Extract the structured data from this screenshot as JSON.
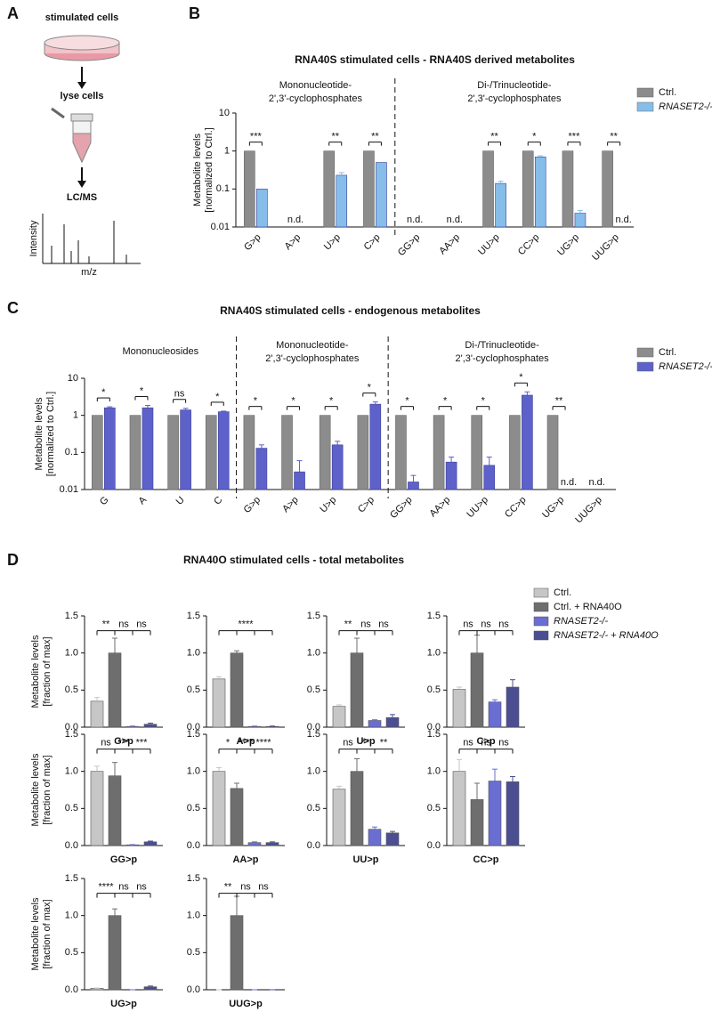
{
  "panels": [
    "A",
    "B",
    "C",
    "D"
  ],
  "diagram": {
    "steps": [
      "stimulated cells",
      "lyse cells",
      "LC/MS"
    ],
    "ylabel": "Intensity",
    "xlabel": "m/z"
  },
  "chart_data": [
    {
      "type": "bar",
      "title": "RNA40S stimulated cells - RNA40S derived metabolites",
      "groups": [
        [
          "Mononucleotide-",
          "2',3'-cyclophosphates"
        ],
        [
          "Di-/Trinucleotide-",
          "2',3'-cyclophosphates"
        ]
      ],
      "ylabel": [
        "Metabolite levels",
        "[normalized to Ctrl.]"
      ],
      "categories": [
        "G>p",
        "A>p",
        "U>p",
        "C>p",
        "GG>p",
        "AA>p",
        "UU>p",
        "CC>p",
        "UG>p",
        "UUG>p"
      ],
      "series": [
        {
          "name": "Ctrl.",
          "color": "#8c8c8c",
          "values": [
            1,
            null,
            1,
            1,
            null,
            null,
            1,
            1,
            1,
            1
          ],
          "errors": [
            null,
            null,
            null,
            null,
            null,
            null,
            null,
            null,
            null,
            null
          ]
        },
        {
          "name": "RNASET2-/-",
          "color": "#86bde9",
          "values": [
            0.1,
            null,
            0.23,
            0.5,
            null,
            null,
            0.14,
            0.7,
            0.023,
            null
          ],
          "errors": [
            null,
            null,
            0.04,
            null,
            null,
            null,
            0.02,
            0.05,
            0.004,
            null
          ]
        }
      ],
      "significance": [
        "***",
        null,
        "**",
        "**",
        null,
        null,
        "**",
        "*",
        "***",
        "**"
      ],
      "missing_label": "n.d.",
      "log_scale": true,
      "ylim": [
        0.01,
        10
      ],
      "yticks": [
        0.01,
        0.1,
        1,
        10
      ]
    },
    {
      "type": "bar",
      "title": "RNA40S stimulated cells - endogenous metabolites",
      "groups": [
        [
          "Mononucleosides"
        ],
        [
          "Mononucleotide-",
          "2',3'-cyclophosphates"
        ],
        [
          "Di-/Trinucleotide-",
          "2',3'-cyclophosphates"
        ]
      ],
      "ylabel": [
        "Metabolite levels",
        "[normalized to Ctrl.]"
      ],
      "categories": [
        "G",
        "A",
        "U",
        "C",
        "G>p",
        "A>p",
        "U>p",
        "C>p",
        "GG>p",
        "AA>p",
        "UU>p",
        "CC>p",
        "UG>p",
        "UUG>p"
      ],
      "series": [
        {
          "name": "Ctrl.",
          "color": "#8c8c8c",
          "values": [
            1,
            1,
            1,
            1,
            1,
            1,
            1,
            1,
            1,
            1,
            1,
            1,
            1,
            null
          ],
          "errors": [
            null,
            null,
            null,
            null,
            null,
            null,
            null,
            null,
            null,
            null,
            null,
            null,
            null,
            null
          ]
        },
        {
          "name": "RNASET2-/-",
          "color": "#5d61c9",
          "values": [
            1.6,
            1.6,
            1.4,
            1.25,
            0.13,
            0.03,
            0.16,
            2.0,
            0.016,
            0.055,
            0.045,
            3.5,
            null,
            null
          ],
          "errors": [
            0.1,
            0.25,
            0.15,
            0.05,
            0.03,
            0.03,
            0.04,
            0.3,
            0.008,
            0.02,
            0.03,
            0.8,
            null,
            null
          ]
        }
      ],
      "significance": [
        "*",
        "*",
        "ns",
        "*",
        "*",
        "*",
        "*",
        "*",
        "*",
        "*",
        "*",
        "*",
        "**",
        null
      ],
      "missing_label": "n.d.",
      "log_scale": true,
      "ylim": [
        0.01,
        10
      ],
      "yticks": [
        0.01,
        0.1,
        1,
        10
      ]
    },
    {
      "type": "bar-panels",
      "title": "RNA40O stimulated cells - total metabolites",
      "ylabel": [
        "Metabolite levels",
        "[fraction of max]"
      ],
      "categories": [
        "G>p",
        "A>p",
        "U>p",
        "C>p",
        "GG>p",
        "AA>p",
        "UU>p",
        "CC>p",
        "UG>p",
        "UUG>p"
      ],
      "series": [
        {
          "name": "Ctrl.",
          "color": "#c6c6c6",
          "values": [
            0.35,
            0.65,
            0.28,
            0.51,
            1.0,
            1.0,
            0.76,
            1.0,
            0.02,
            0
          ],
          "errors": [
            0.05,
            0.03,
            0.02,
            0.03,
            0.07,
            0.05,
            0.04,
            0.16,
            0.003,
            0
          ]
        },
        {
          "name": "Ctrl. + RNA40O",
          "color": "#6e6e6e",
          "values": [
            1.0,
            1.0,
            1.0,
            1.0,
            0.94,
            0.77,
            1.0,
            0.62,
            1.0,
            1.0
          ],
          "errors": [
            0.2,
            0.03,
            0.2,
            0.24,
            0.18,
            0.07,
            0.17,
            0.22,
            0.09,
            0.26
          ]
        },
        {
          "name": "RNASET2-/-",
          "color": "#6a6ed2",
          "values": [
            0.01,
            0.01,
            0.09,
            0.34,
            0.01,
            0.04,
            0.22,
            0.87,
            0,
            0
          ],
          "errors": [
            0.005,
            0.005,
            0.01,
            0.03,
            0.003,
            0.01,
            0.03,
            0.16,
            0,
            0
          ]
        },
        {
          "name": "RNASET2-/- + RNA40O",
          "color": "#4b4f92",
          "values": [
            0.04,
            0.01,
            0.13,
            0.54,
            0.05,
            0.04,
            0.17,
            0.86,
            0.04,
            0
          ],
          "errors": [
            0.015,
            0.005,
            0.04,
            0.1,
            0.01,
            0.01,
            0.02,
            0.07,
            0.01,
            0
          ]
        }
      ],
      "significance": [
        [
          "**",
          "ns",
          "ns"
        ],
        [
          "****"
        ],
        [
          "**",
          "ns",
          "ns"
        ],
        [
          "ns",
          "ns",
          "ns"
        ],
        [
          "ns",
          "***",
          "***"
        ],
        [
          "*",
          "****",
          "****"
        ],
        [
          "ns",
          "**",
          "**"
        ],
        [
          "ns",
          "ns",
          "ns"
        ],
        [
          "****",
          "ns",
          "ns"
        ],
        [
          "**",
          "ns",
          "ns"
        ]
      ],
      "ylim": [
        0,
        1.5
      ],
      "yticks": [
        {
          "value": 0,
          "label": "0.0"
        },
        {
          "value": 0.5,
          "label": "0.5"
        },
        {
          "value": 1,
          "label": "1.0"
        },
        {
          "value": 1.5,
          "label": "1.5"
        }
      ]
    }
  ]
}
